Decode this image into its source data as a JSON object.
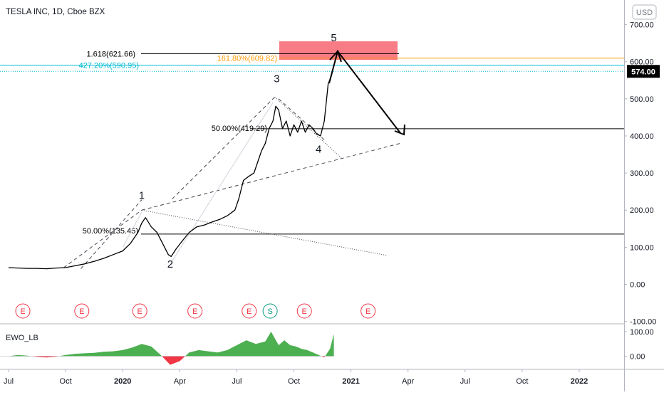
{
  "header": {
    "title": "TESLA INC, 1D, Cboe BZX",
    "currency": "USD"
  },
  "price_axis": {
    "ticks": [
      {
        "value": 700,
        "label": "700.00"
      },
      {
        "value": 600,
        "label": "600.00"
      },
      {
        "value": 500,
        "label": "500.00"
      },
      {
        "value": 400,
        "label": "400.00"
      },
      {
        "value": 300,
        "label": "300.00"
      },
      {
        "value": 200,
        "label": "200.00"
      },
      {
        "value": 100,
        "label": "100.00"
      },
      {
        "value": 0,
        "label": "0.00"
      },
      {
        "value": -100,
        "label": "-100.00"
      }
    ],
    "last_price_label": "574.00",
    "last_price_color": "#000000"
  },
  "time_axis": {
    "ticks": [
      {
        "t": 0,
        "label": "Jul"
      },
      {
        "t": 3,
        "label": "Oct"
      },
      {
        "t": 6,
        "label": "2020",
        "bold": true
      },
      {
        "t": 9,
        "label": "Apr"
      },
      {
        "t": 12,
        "label": "Jul"
      },
      {
        "t": 15,
        "label": "Oct"
      },
      {
        "t": 18,
        "label": "2021",
        "bold": true
      },
      {
        "t": 21,
        "label": "Apr"
      },
      {
        "t": 24,
        "label": "Jul"
      },
      {
        "t": 27,
        "label": "Oct"
      },
      {
        "t": 30,
        "label": "2022",
        "bold": true
      }
    ]
  },
  "levels": [
    {
      "label": "1.618(621.66)",
      "price": 621.66,
      "color": "#000000"
    },
    {
      "label": "161.80%(609.82)",
      "price": 609.82,
      "color": "#ff9800"
    },
    {
      "label": "427.20%(590.95)",
      "price": 590.95,
      "color": "#00bcd4"
    },
    {
      "label": "50.00%(419.29)",
      "price": 419.29,
      "color": "#000000"
    },
    {
      "label": "50.00%(135.45)",
      "price": 135.45,
      "color": "#000000"
    }
  ],
  "waves": [
    {
      "label": "1",
      "t": 7.0,
      "price": 230
    },
    {
      "label": "2",
      "t": 8.5,
      "price": 45
    },
    {
      "label": "3",
      "t": 14.1,
      "price": 545
    },
    {
      "label": "4",
      "t": 16.3,
      "price": 355
    },
    {
      "label": "5",
      "t": 17.1,
      "price": 655
    }
  ],
  "events": [
    {
      "t": 0.75,
      "label": "E",
      "color": "#f23645"
    },
    {
      "t": 3.85,
      "label": "E",
      "color": "#f23645"
    },
    {
      "t": 6.9,
      "label": "E",
      "color": "#f23645"
    },
    {
      "t": 9.8,
      "label": "E",
      "color": "#f23645"
    },
    {
      "t": 12.65,
      "label": "E",
      "color": "#f23645"
    },
    {
      "t": 13.75,
      "label": "S",
      "color": "#089981"
    },
    {
      "t": 15.55,
      "label": "E",
      "color": "#f23645"
    },
    {
      "t": 18.9,
      "label": "E",
      "color": "#f23645"
    }
  ],
  "indicator": {
    "name": "EWO_LB",
    "ticks": [
      {
        "value": 100,
        "label": "100.00"
      },
      {
        "value": 0,
        "label": "0.00"
      }
    ],
    "positive_color": "#4caf50",
    "negative_color": "#f23645"
  },
  "chart_data": {
    "type": "line",
    "price": {
      "series": [
        {
          "t": [
            0,
            0.5,
            1,
            1.5,
            2,
            2.5,
            3,
            3.5,
            4,
            4.5,
            5,
            5.5,
            6,
            6.4,
            6.8,
            7.0,
            7.2,
            7.5,
            7.8,
            8.1,
            8.4,
            8.55,
            8.8,
            9.1,
            9.5,
            9.9,
            10.3,
            10.7,
            11.1,
            11.5,
            11.9,
            12.1,
            12.35,
            12.6,
            12.9,
            13.1,
            13.3,
            13.5,
            13.7,
            13.9,
            14.05,
            14.2,
            14.4,
            14.6,
            14.8,
            15.0,
            15.2,
            15.4,
            15.6,
            15.8,
            16.0,
            16.2,
            16.4,
            16.6,
            16.8,
            16.95,
            17.05
          ],
          "values": [
            45,
            44,
            43,
            43,
            42,
            44,
            45,
            50,
            55,
            62,
            70,
            80,
            90,
            110,
            140,
            165,
            180,
            155,
            140,
            110,
            80,
            75,
            95,
            115,
            140,
            155,
            160,
            168,
            175,
            185,
            200,
            230,
            280,
            290,
            300,
            330,
            360,
            380,
            420,
            440,
            480,
            470,
            420,
            440,
            400,
            430,
            410,
            440,
            410,
            430,
            420,
            405,
            400,
            440,
            540,
            560,
            580
          ]
        }
      ],
      "ylim": [
        -100,
        780
      ]
    },
    "ewo": {
      "series": [
        {
          "name": "EWO_LB",
          "t": [
            0,
            0.5,
            1,
            1.5,
            2,
            2.5,
            3,
            3.5,
            4,
            4.5,
            5,
            5.5,
            6,
            6.5,
            7,
            7.5,
            8,
            8.5,
            9,
            9.5,
            10,
            10.5,
            11,
            11.5,
            12,
            12.5,
            13,
            13.5,
            13.8,
            14.2,
            14.5,
            14.8,
            15.1,
            15.4,
            15.7,
            16.0,
            16.3,
            16.6,
            16.9,
            17.1
          ],
          "values": [
            0,
            5,
            2,
            -3,
            -5,
            -2,
            5,
            10,
            12,
            14,
            18,
            20,
            25,
            35,
            50,
            40,
            5,
            -35,
            -20,
            15,
            25,
            20,
            15,
            25,
            45,
            65,
            50,
            60,
            100,
            45,
            65,
            45,
            40,
            30,
            25,
            15,
            5,
            -5,
            30,
            90
          ]
        }
      ],
      "ylim": [
        -50,
        110
      ]
    }
  }
}
